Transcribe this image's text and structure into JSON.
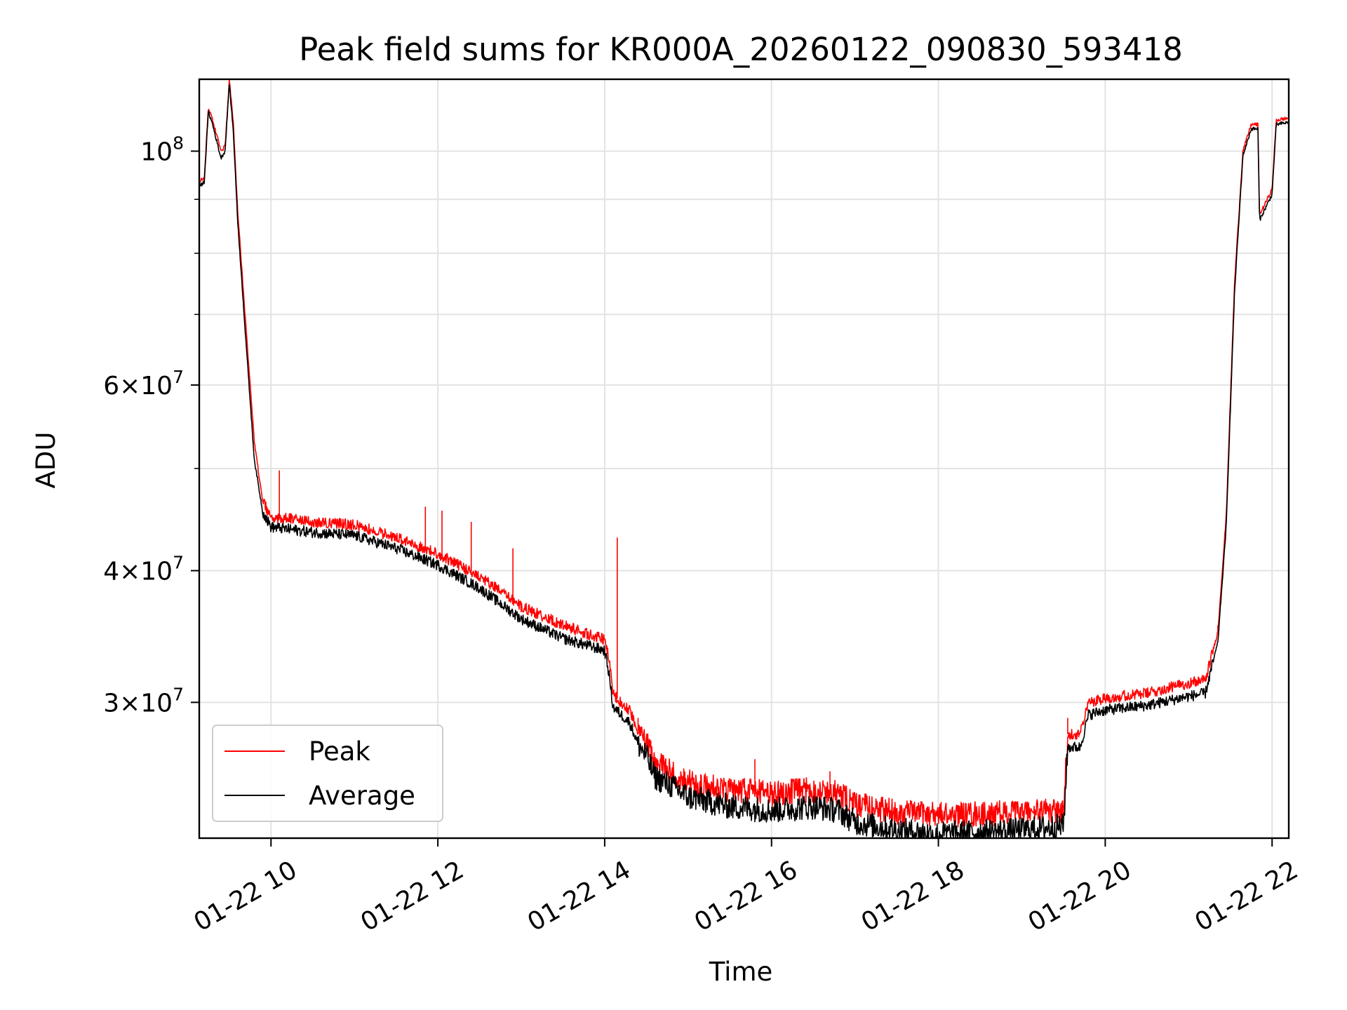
{
  "chart_data": {
    "type": "line",
    "title": "Peak field sums for KR000A_20260122_090830_593418",
    "xlabel": "Time",
    "ylabel": "ADU",
    "xscale": "time",
    "yscale": "log",
    "xlim": [
      9.14,
      22.2
    ],
    "ylim": [
      22300000,
      117000000
    ],
    "grid": true,
    "legend_position": "lower-left",
    "x_ticks": [
      {
        "value": 10,
        "label": "01-22 10"
      },
      {
        "value": 12,
        "label": "01-22 12"
      },
      {
        "value": 14,
        "label": "01-22 14"
      },
      {
        "value": 16,
        "label": "01-22 16"
      },
      {
        "value": 18,
        "label": "01-22 18"
      },
      {
        "value": 20,
        "label": "01-22 20"
      },
      {
        "value": 22,
        "label": "01-22 22"
      }
    ],
    "y_ticks": [
      {
        "value": 30000000,
        "coef": "3",
        "exp": "7"
      },
      {
        "value": 40000000,
        "coef": "4",
        "exp": "7"
      },
      {
        "value": 60000000,
        "coef": "6",
        "exp": "7"
      },
      {
        "value": 100000000,
        "coef": "",
        "exp": "8"
      }
    ],
    "y_minor_ticks": [
      50000000,
      70000000,
      80000000,
      90000000
    ],
    "series": [
      {
        "name": "Peak",
        "color": "#ff0000",
        "points": [
          [
            9.14,
            93500000
          ],
          [
            9.2,
            94500000
          ],
          [
            9.25,
            110000000
          ],
          [
            9.3,
            107000000
          ],
          [
            9.4,
            100000000
          ],
          [
            9.45,
            101000000
          ],
          [
            9.5,
            117000000
          ],
          [
            9.55,
            106000000
          ],
          [
            9.6,
            88000000
          ],
          [
            9.7,
            68000000
          ],
          [
            9.8,
            53000000
          ],
          [
            9.9,
            46500000
          ],
          [
            10.0,
            45000000
          ],
          [
            10.5,
            44500000
          ],
          [
            11.0,
            44200000
          ],
          [
            11.5,
            43000000
          ],
          [
            12.0,
            41500000
          ],
          [
            12.5,
            39500000
          ],
          [
            13.0,
            37000000
          ],
          [
            13.5,
            35500000
          ],
          [
            14.0,
            34400000
          ],
          [
            14.05,
            33000000
          ],
          [
            14.1,
            30500000
          ],
          [
            14.3,
            29500000
          ],
          [
            14.4,
            28200000
          ],
          [
            14.5,
            27500000
          ],
          [
            14.6,
            26300000
          ],
          [
            14.8,
            25800000
          ],
          [
            15.0,
            25200000
          ],
          [
            15.5,
            24800000
          ],
          [
            16.0,
            24600000
          ],
          [
            16.5,
            24800000
          ],
          [
            16.8,
            24600000
          ],
          [
            17.0,
            24000000
          ],
          [
            17.5,
            23600000
          ],
          [
            18.0,
            23500000
          ],
          [
            18.5,
            23500000
          ],
          [
            19.0,
            23600000
          ],
          [
            19.5,
            23700000
          ],
          [
            19.55,
            28000000
          ],
          [
            19.7,
            28000000
          ],
          [
            19.8,
            30000000
          ],
          [
            20.0,
            30300000
          ],
          [
            20.5,
            30600000
          ],
          [
            21.0,
            31300000
          ],
          [
            21.2,
            31500000
          ],
          [
            21.35,
            35000000
          ],
          [
            21.45,
            45000000
          ],
          [
            21.55,
            75000000
          ],
          [
            21.65,
            100000000
          ],
          [
            21.75,
            106000000
          ],
          [
            21.83,
            106000000
          ],
          [
            21.85,
            87000000
          ],
          [
            22.0,
            92000000
          ],
          [
            22.05,
            107000000
          ],
          [
            22.2,
            107500000
          ]
        ]
      },
      {
        "name": "Average",
        "color": "#000000",
        "points": [
          [
            9.14,
            92500000
          ],
          [
            9.2,
            93500000
          ],
          [
            9.25,
            109000000
          ],
          [
            9.3,
            106000000
          ],
          [
            9.4,
            98500000
          ],
          [
            9.45,
            100000000
          ],
          [
            9.5,
            116000000
          ],
          [
            9.55,
            104000000
          ],
          [
            9.6,
            86000000
          ],
          [
            9.7,
            66000000
          ],
          [
            9.8,
            51000000
          ],
          [
            9.9,
            45500000
          ],
          [
            10.0,
            44000000
          ],
          [
            10.5,
            43500000
          ],
          [
            11.0,
            43200000
          ],
          [
            11.5,
            42000000
          ],
          [
            12.0,
            40500000
          ],
          [
            12.5,
            38500000
          ],
          [
            13.0,
            36000000
          ],
          [
            13.5,
            34500000
          ],
          [
            14.0,
            33600000
          ],
          [
            14.05,
            32000000
          ],
          [
            14.1,
            29700000
          ],
          [
            14.3,
            28700000
          ],
          [
            14.4,
            27400000
          ],
          [
            14.5,
            26700000
          ],
          [
            14.6,
            25500000
          ],
          [
            14.8,
            25000000
          ],
          [
            15.0,
            24400000
          ],
          [
            15.5,
            23900000
          ],
          [
            16.0,
            23700000
          ],
          [
            16.5,
            23900000
          ],
          [
            16.8,
            23700000
          ],
          [
            17.0,
            23100000
          ],
          [
            17.5,
            22700000
          ],
          [
            18.0,
            22500000
          ],
          [
            18.5,
            22600000
          ],
          [
            19.0,
            22700000
          ],
          [
            19.5,
            22900000
          ],
          [
            19.55,
            27200000
          ],
          [
            19.7,
            27200000
          ],
          [
            19.8,
            29200000
          ],
          [
            20.0,
            29500000
          ],
          [
            20.5,
            29800000
          ],
          [
            21.0,
            30400000
          ],
          [
            21.2,
            30600000
          ],
          [
            21.35,
            34200000
          ],
          [
            21.45,
            44000000
          ],
          [
            21.55,
            73500000
          ],
          [
            21.65,
            99000000
          ],
          [
            21.75,
            105000000
          ],
          [
            21.83,
            105000000
          ],
          [
            21.85,
            86000000
          ],
          [
            22.0,
            91000000
          ],
          [
            22.05,
            106000000
          ],
          [
            22.2,
            106500000
          ]
        ]
      }
    ],
    "spikes": [
      [
        10.1,
        49800000
      ],
      [
        11.85,
        46000000
      ],
      [
        12.05,
        45600000
      ],
      [
        12.4,
        44500000
      ],
      [
        12.9,
        42000000
      ],
      [
        14.15,
        43000000
      ],
      [
        14.4,
        29000000
      ],
      [
        15.8,
        26500000
      ],
      [
        16.7,
        25800000
      ],
      [
        19.55,
        29000000
      ],
      [
        21.35,
        35500000
      ]
    ]
  }
}
